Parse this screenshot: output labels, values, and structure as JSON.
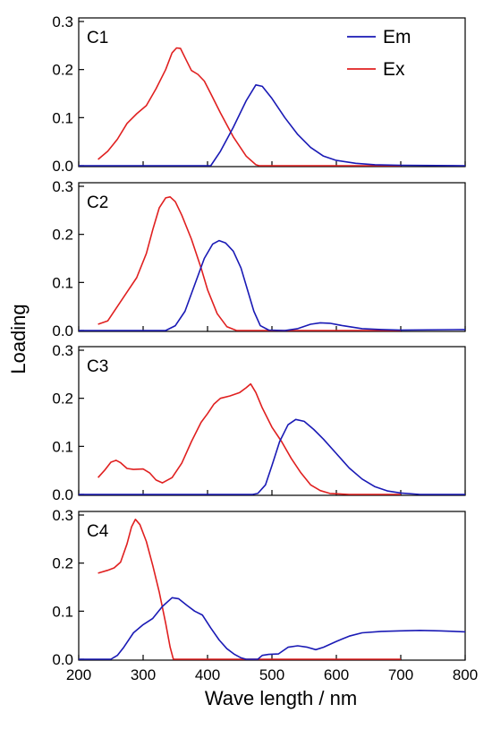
{
  "chart_data": {
    "type": "line",
    "xlabel": "Wave length / nm",
    "ylabel": "Loading",
    "xlim": [
      200,
      800
    ],
    "ylim": [
      0,
      0.3
    ],
    "x_ticks": [
      200,
      300,
      400,
      500,
      600,
      700,
      800
    ],
    "y_ticks": [
      0.0,
      0.1,
      0.2,
      0.3
    ],
    "grid": false,
    "legend": {
      "placement": "top-right of first panel",
      "entries": [
        {
          "name": "Em",
          "color": "#1a1ab5"
        },
        {
          "name": "Ex",
          "color": "#e02020"
        }
      ]
    },
    "panels": [
      {
        "label": "C1",
        "series": [
          {
            "name": "Ex",
            "color": "#e02020",
            "points": [
              [
                230,
                0.013
              ],
              [
                245,
                0.03
              ],
              [
                260,
                0.055
              ],
              [
                275,
                0.088
              ],
              [
                290,
                0.108
              ],
              [
                305,
                0.125
              ],
              [
                320,
                0.16
              ],
              [
                335,
                0.2
              ],
              [
                345,
                0.235
              ],
              [
                352,
                0.245
              ],
              [
                358,
                0.244
              ],
              [
                365,
                0.225
              ],
              [
                375,
                0.198
              ],
              [
                385,
                0.19
              ],
              [
                395,
                0.176
              ],
              [
                405,
                0.15
              ],
              [
                420,
                0.11
              ],
              [
                440,
                0.06
              ],
              [
                460,
                0.02
              ],
              [
                475,
                0.002
              ],
              [
                480,
                0.0
              ],
              [
                700,
                0.0
              ]
            ]
          },
          {
            "name": "Em",
            "color": "#1a1ab5",
            "points": [
              [
                200,
                0.0
              ],
              [
                405,
                0.0
              ],
              [
                420,
                0.03
              ],
              [
                440,
                0.08
              ],
              [
                460,
                0.135
              ],
              [
                475,
                0.168
              ],
              [
                485,
                0.165
              ],
              [
                500,
                0.14
              ],
              [
                520,
                0.1
              ],
              [
                540,
                0.065
              ],
              [
                560,
                0.038
              ],
              [
                580,
                0.02
              ],
              [
                600,
                0.011
              ],
              [
                630,
                0.005
              ],
              [
                660,
                0.002
              ],
              [
                700,
                0.001
              ],
              [
                800,
                0.0
              ]
            ]
          }
        ]
      },
      {
        "label": "C2",
        "series": [
          {
            "name": "Ex",
            "color": "#e02020",
            "points": [
              [
                230,
                0.013
              ],
              [
                245,
                0.02
              ],
              [
                260,
                0.05
              ],
              [
                275,
                0.08
              ],
              [
                290,
                0.11
              ],
              [
                305,
                0.16
              ],
              [
                315,
                0.21
              ],
              [
                325,
                0.255
              ],
              [
                335,
                0.276
              ],
              [
                342,
                0.278
              ],
              [
                350,
                0.268
              ],
              [
                360,
                0.24
              ],
              [
                375,
                0.19
              ],
              [
                390,
                0.13
              ],
              [
                400,
                0.085
              ],
              [
                415,
                0.035
              ],
              [
                430,
                0.008
              ],
              [
                445,
                0.0
              ],
              [
                700,
                0.0
              ]
            ]
          },
          {
            "name": "Em",
            "color": "#1a1ab5",
            "points": [
              [
                200,
                0.0
              ],
              [
                335,
                0.0
              ],
              [
                350,
                0.01
              ],
              [
                365,
                0.04
              ],
              [
                380,
                0.095
              ],
              [
                395,
                0.15
              ],
              [
                408,
                0.18
              ],
              [
                418,
                0.187
              ],
              [
                428,
                0.182
              ],
              [
                440,
                0.165
              ],
              [
                452,
                0.13
              ],
              [
                462,
                0.085
              ],
              [
                472,
                0.04
              ],
              [
                482,
                0.01
              ],
              [
                495,
                0.001
              ],
              [
                520,
                0.0
              ],
              [
                540,
                0.004
              ],
              [
                560,
                0.013
              ],
              [
                575,
                0.016
              ],
              [
                590,
                0.015
              ],
              [
                610,
                0.01
              ],
              [
                640,
                0.004
              ],
              [
                670,
                0.002
              ],
              [
                700,
                0.001
              ],
              [
                800,
                0.002
              ]
            ]
          }
        ]
      },
      {
        "label": "C3",
        "series": [
          {
            "name": "Ex",
            "color": "#e02020",
            "points": [
              [
                230,
                0.035
              ],
              [
                240,
                0.05
              ],
              [
                250,
                0.067
              ],
              [
                258,
                0.071
              ],
              [
                265,
                0.066
              ],
              [
                275,
                0.054
              ],
              [
                285,
                0.052
              ],
              [
                300,
                0.053
              ],
              [
                310,
                0.045
              ],
              [
                320,
                0.03
              ],
              [
                330,
                0.024
              ],
              [
                345,
                0.035
              ],
              [
                360,
                0.065
              ],
              [
                375,
                0.11
              ],
              [
                390,
                0.15
              ],
              [
                400,
                0.168
              ],
              [
                410,
                0.188
              ],
              [
                420,
                0.2
              ],
              [
                435,
                0.205
              ],
              [
                450,
                0.212
              ],
              [
                460,
                0.222
              ],
              [
                467,
                0.23
              ],
              [
                475,
                0.212
              ],
              [
                485,
                0.18
              ],
              [
                500,
                0.14
              ],
              [
                515,
                0.11
              ],
              [
                530,
                0.075
              ],
              [
                545,
                0.045
              ],
              [
                560,
                0.02
              ],
              [
                575,
                0.008
              ],
              [
                590,
                0.002
              ],
              [
                620,
                0.0
              ],
              [
                700,
                0.0
              ]
            ]
          },
          {
            "name": "Em",
            "color": "#1a1ab5",
            "points": [
              [
                200,
                0.0
              ],
              [
                470,
                0.0
              ],
              [
                478,
                0.002
              ],
              [
                490,
                0.02
              ],
              [
                500,
                0.06
              ],
              [
                512,
                0.11
              ],
              [
                525,
                0.145
              ],
              [
                537,
                0.156
              ],
              [
                550,
                0.152
              ],
              [
                565,
                0.135
              ],
              [
                580,
                0.115
              ],
              [
                600,
                0.085
              ],
              [
                620,
                0.055
              ],
              [
                640,
                0.032
              ],
              [
                660,
                0.016
              ],
              [
                680,
                0.007
              ],
              [
                700,
                0.003
              ],
              [
                730,
                0.0
              ],
              [
                800,
                0.0
              ]
            ]
          }
        ]
      },
      {
        "label": "C4",
        "series": [
          {
            "name": "Ex",
            "color": "#e02020",
            "points": [
              [
                230,
                0.179
              ],
              [
                245,
                0.185
              ],
              [
                255,
                0.19
              ],
              [
                265,
                0.202
              ],
              [
                275,
                0.24
              ],
              [
                282,
                0.275
              ],
              [
                288,
                0.291
              ],
              [
                295,
                0.28
              ],
              [
                305,
                0.245
              ],
              [
                315,
                0.195
              ],
              [
                325,
                0.14
              ],
              [
                335,
                0.075
              ],
              [
                342,
                0.025
              ],
              [
                347,
                0.0
              ],
              [
                360,
                0.0
              ],
              [
                700,
                0.0
              ]
            ]
          },
          {
            "name": "Em",
            "color": "#1a1ab5",
            "points": [
              [
                200,
                0.0
              ],
              [
                250,
                0.0
              ],
              [
                260,
                0.008
              ],
              [
                270,
                0.025
              ],
              [
                285,
                0.055
              ],
              [
                300,
                0.072
              ],
              [
                315,
                0.085
              ],
              [
                330,
                0.11
              ],
              [
                345,
                0.128
              ],
              [
                355,
                0.126
              ],
              [
                368,
                0.112
              ],
              [
                380,
                0.1
              ],
              [
                392,
                0.092
              ],
              [
                405,
                0.065
              ],
              [
                418,
                0.04
              ],
              [
                430,
                0.022
              ],
              [
                442,
                0.01
              ],
              [
                452,
                0.003
              ],
              [
                460,
                0.0
              ],
              [
                478,
                0.0
              ],
              [
                485,
                0.008
              ],
              [
                495,
                0.01
              ],
              [
                510,
                0.011
              ],
              [
                525,
                0.025
              ],
              [
                540,
                0.028
              ],
              [
                555,
                0.025
              ],
              [
                568,
                0.02
              ],
              [
                580,
                0.025
              ],
              [
                600,
                0.037
              ],
              [
                620,
                0.048
              ],
              [
                640,
                0.055
              ],
              [
                670,
                0.058
              ],
              [
                700,
                0.059
              ],
              [
                730,
                0.06
              ],
              [
                760,
                0.059
              ],
              [
                800,
                0.057
              ]
            ]
          }
        ]
      }
    ]
  }
}
